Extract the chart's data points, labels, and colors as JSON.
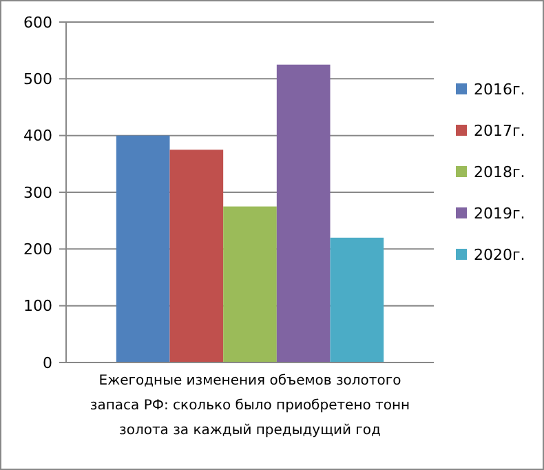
{
  "chart_data": {
    "type": "bar",
    "categories": [
      null
    ],
    "xlabel": "Ежегодные изменения объемов золотого запаса РФ: сколько было приобретено тонн золота за каждый предыдущий год",
    "series": [
      {
        "name": "2016г.",
        "color": "#4f81bd",
        "values": [
          400
        ]
      },
      {
        "name": "2017г.",
        "color": "#c0504d",
        "values": [
          375
        ]
      },
      {
        "name": "2018г.",
        "color": "#9bbb59",
        "values": [
          275
        ]
      },
      {
        "name": "2019г.",
        "color": "#8064a2",
        "values": [
          525
        ]
      },
      {
        "name": "2020г.",
        "color": "#4bacc6",
        "values": [
          220
        ]
      }
    ],
    "ylim": [
      0,
      600
    ],
    "yticks": [
      0,
      100,
      200,
      300,
      400,
      500,
      600
    ],
    "grid": "y",
    "legend": "right"
  }
}
